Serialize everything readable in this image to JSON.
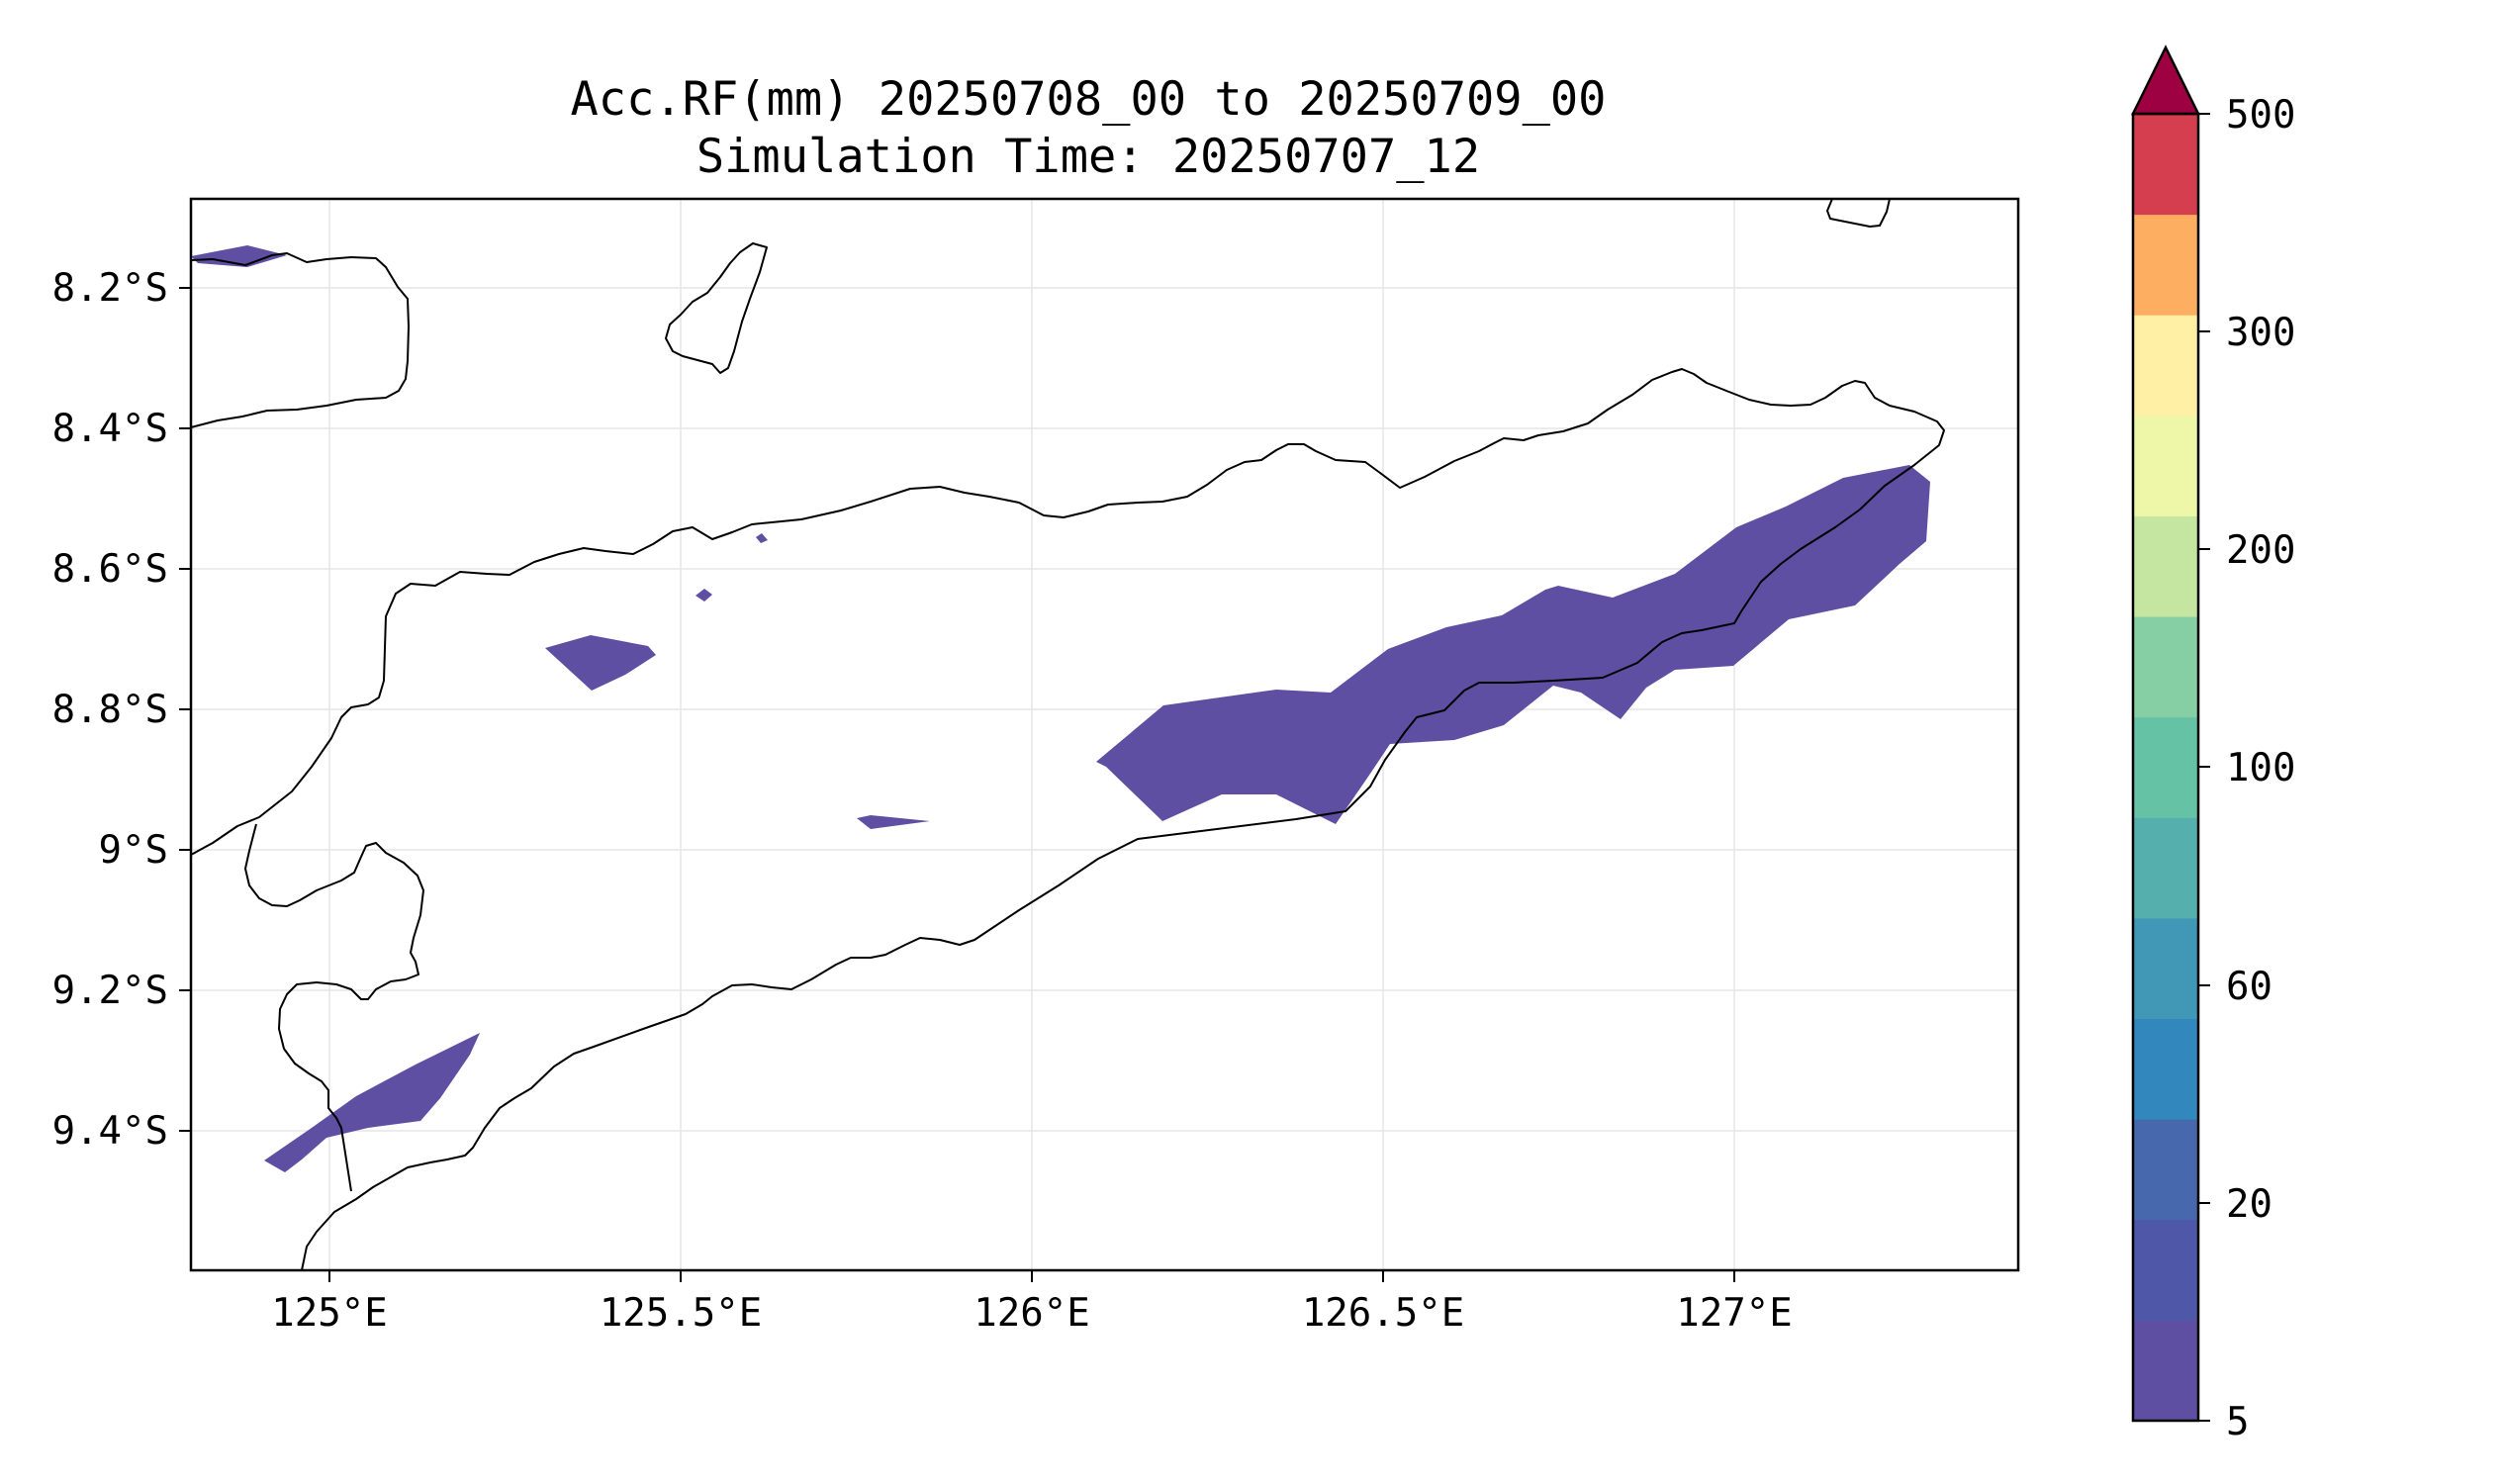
{
  "title": {
    "line1": "Acc.RF(mm) 20250708_00 to 20250709_00",
    "line2": "Simulation Time: 20250707_12"
  },
  "map": {
    "lon_ticks": [
      "125°E",
      "125.5°E",
      "126°E",
      "126.5°E",
      "127°E"
    ],
    "lat_ticks": [
      "8.2°S",
      "8.4°S",
      "8.6°S",
      "8.8°S",
      "9°S",
      "9.2°S",
      "9.4°S"
    ],
    "grid": true,
    "rain_color": "#5e4fa2"
  },
  "colorbar": {
    "extend": "max",
    "tick_labels": [
      "500",
      "300",
      "200",
      "100",
      "60",
      "20",
      "5"
    ],
    "levels": [
      5,
      10,
      20,
      40,
      60,
      80,
      100,
      120,
      150,
      200,
      250,
      300,
      350,
      500
    ],
    "colors": [
      "#5e4fa2",
      "#4f58a8",
      "#4868ad",
      "#3288bd",
      "#4198b6",
      "#55b0ad",
      "#66c2a5",
      "#86cfa5",
      "#c4e6a0",
      "#eef7a8",
      "#fff0a5",
      "#fdae61",
      "#d53e4f"
    ],
    "extend_color": "#9e0142"
  }
}
